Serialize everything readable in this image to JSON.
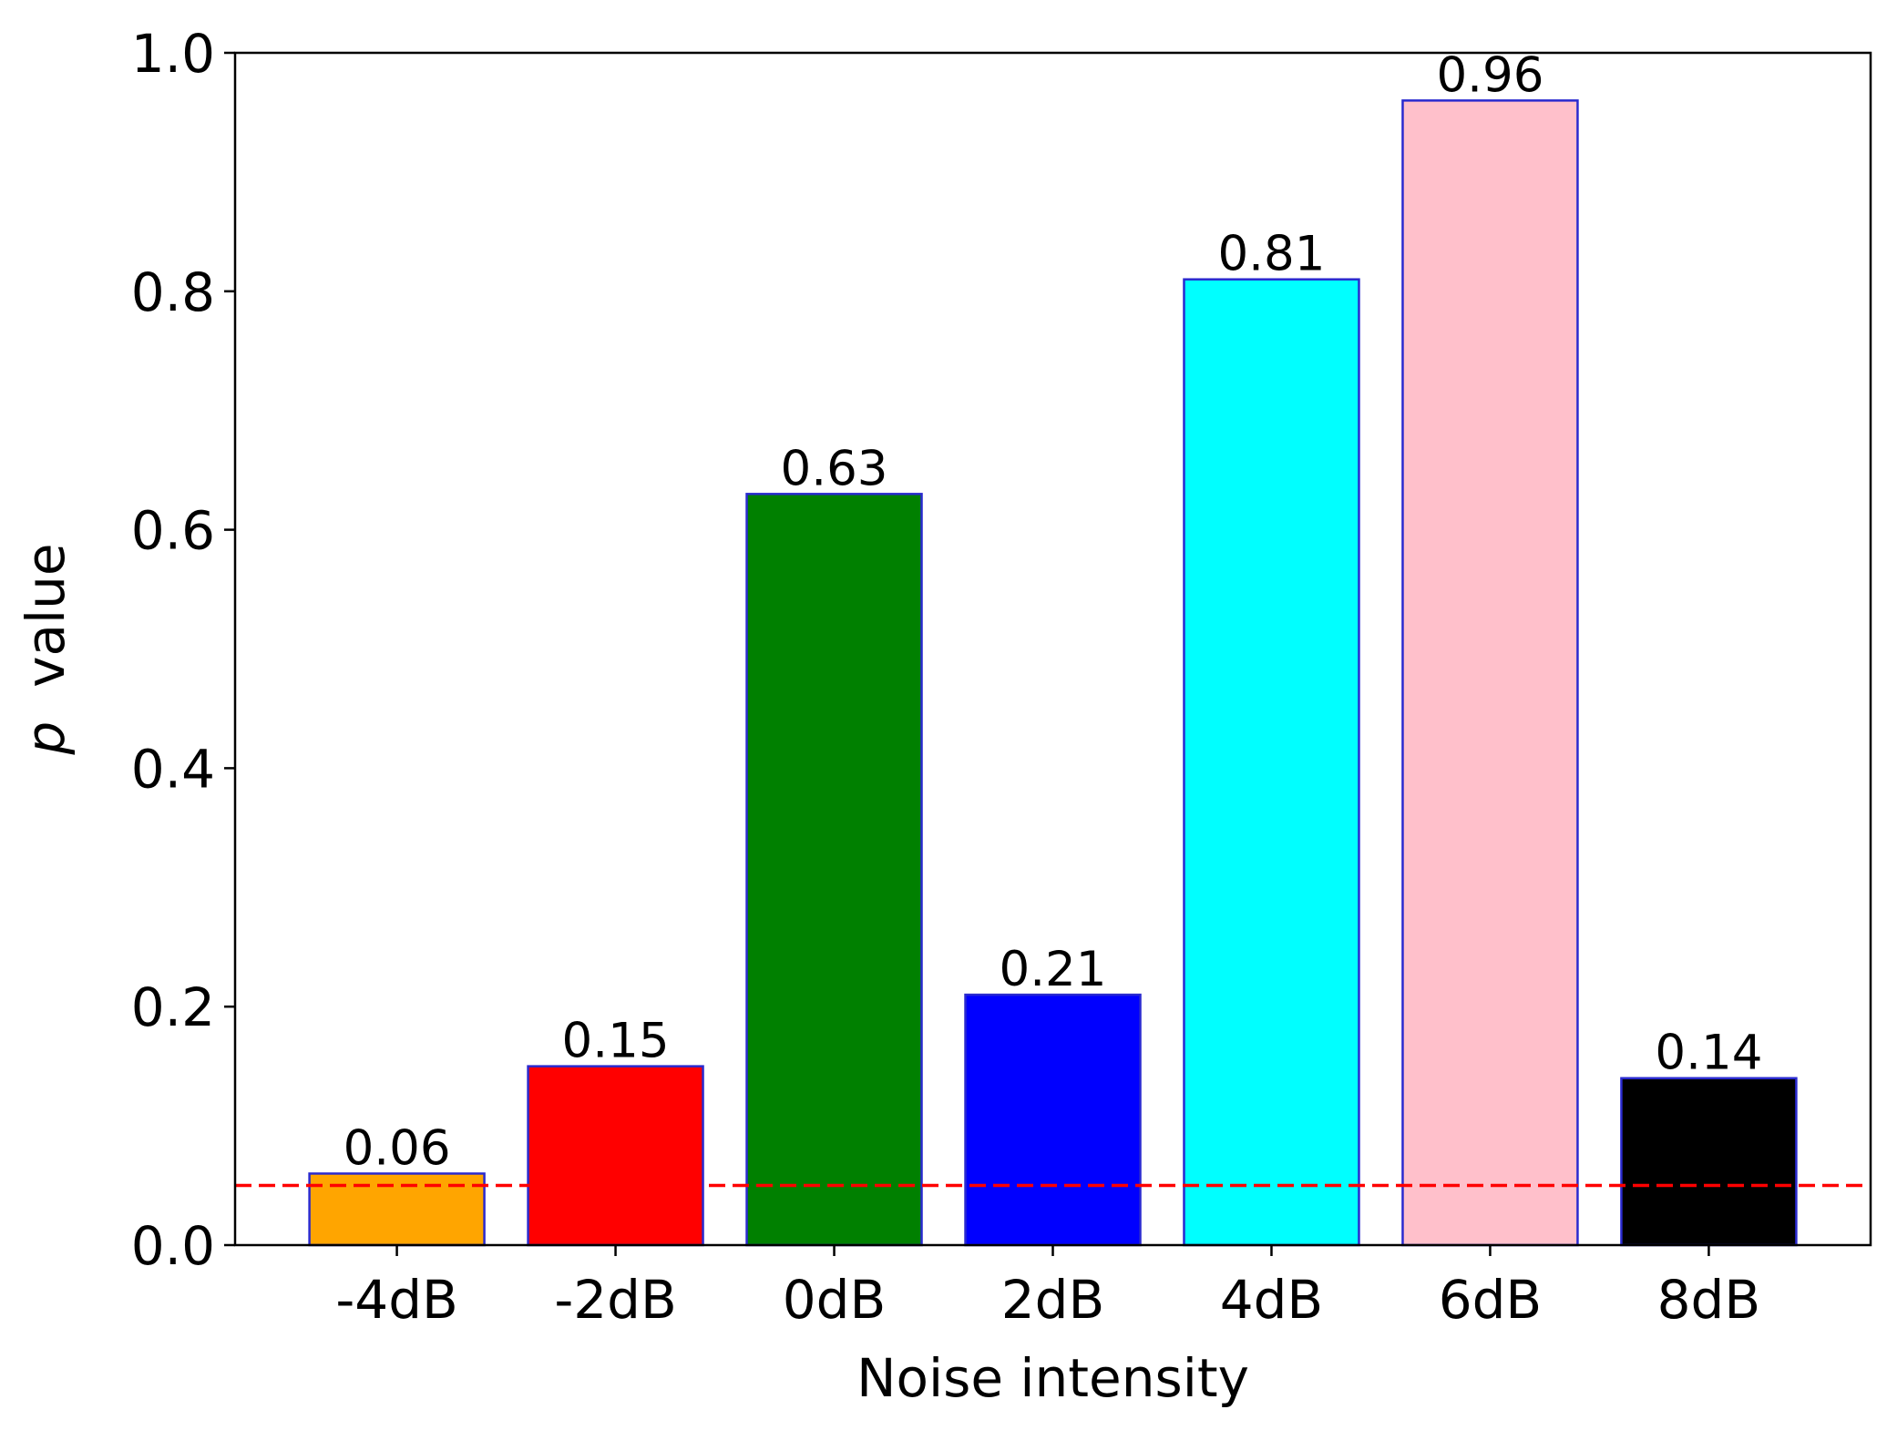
{
  "chart_data": {
    "type": "bar",
    "categories": [
      "-4dB",
      "-2dB",
      "0dB",
      "2dB",
      "4dB",
      "6dB",
      "8dB"
    ],
    "values": [
      0.06,
      0.15,
      0.63,
      0.21,
      0.81,
      0.96,
      0.14
    ],
    "value_labels": [
      "0.06",
      "0.15",
      "0.63",
      "0.21",
      "0.81",
      "0.96",
      "0.14"
    ],
    "bar_colors": [
      "#ffa500",
      "#ff0000",
      "#008000",
      "#0000ff",
      "#00ffff",
      "#ffc0cb",
      "#000000"
    ],
    "bar_edge_color": "#2a2acf",
    "xlabel": "Noise intensity",
    "ylabel_italic": "p",
    "ylabel_rest": " value",
    "ylim": [
      0.0,
      1.0
    ],
    "yticks": [
      0.0,
      0.2,
      0.4,
      0.6,
      0.8,
      1.0
    ],
    "ytick_labels": [
      "0.0",
      "0.2",
      "0.4",
      "0.6",
      "0.8",
      "1.0"
    ],
    "reference_line": {
      "y": 0.05,
      "color": "#ff0000",
      "style": "dashed"
    },
    "grid": false,
    "legend": "none"
  }
}
